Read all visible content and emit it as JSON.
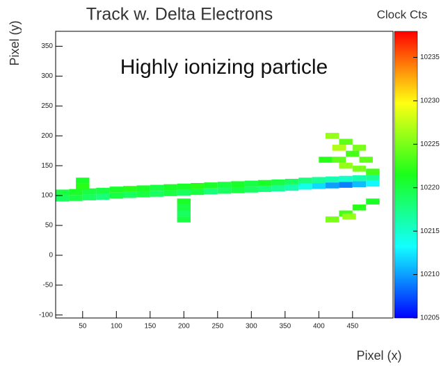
{
  "chart_data": {
    "type": "heatmap",
    "title": "Track w. Delta Electrons",
    "colorbar_title": "Clock Cts",
    "annotation": "Highly ionizing particle",
    "x_label": "Pixel (x)",
    "y_label": "Pixel (y)",
    "xlim": [
      10,
      510
    ],
    "xticks": [
      50,
      100,
      150,
      200,
      250,
      300,
      350,
      400,
      450
    ],
    "ylim": [
      -105,
      375
    ],
    "yticks": [
      -100,
      -50,
      0,
      50,
      100,
      150,
      200,
      250,
      300,
      350
    ],
    "zlim": [
      10205,
      10238
    ],
    "zticks": [
      10205,
      10210,
      10215,
      10220,
      10225,
      10230,
      10235
    ],
    "colormap": "rainbow",
    "x": [
      20,
      20,
      40,
      40,
      60,
      60,
      80,
      80,
      100,
      100,
      120,
      120,
      140,
      140,
      160,
      160,
      180,
      180,
      200,
      200,
      220,
      220,
      240,
      240,
      260,
      260,
      280,
      280,
      300,
      300,
      320,
      320,
      340,
      340,
      360,
      360,
      380,
      380,
      400,
      400,
      420,
      420,
      440,
      440,
      460,
      460,
      480,
      480,
      50,
      50,
      200,
      200,
      200,
      200,
      420,
      440,
      460,
      430,
      450,
      470,
      440,
      460,
      480,
      410,
      430,
      420,
      440,
      460,
      480,
      445
    ],
    "y": [
      95,
      105,
      96,
      106,
      97,
      107,
      98,
      108,
      100,
      110,
      101,
      111,
      102,
      112,
      103,
      113,
      104,
      114,
      105,
      115,
      106,
      116,
      107,
      117,
      108,
      118,
      109,
      119,
      110,
      120,
      111,
      121,
      112,
      122,
      113,
      123,
      115,
      125,
      116,
      126,
      117,
      127,
      118,
      128,
      119,
      129,
      120,
      130,
      115,
      125,
      90,
      80,
      70,
      60,
      200,
      190,
      180,
      180,
      170,
      160,
      150,
      145,
      140,
      160,
      160,
      60,
      70,
      80,
      90,
      65
    ],
    "values": [
      10219,
      10220,
      10220,
      10221,
      10219,
      10220,
      10218,
      10220,
      10220,
      10221,
      10219,
      10222,
      10220,
      10221,
      10219,
      10220,
      10220,
      10221,
      10219,
      10221,
      10220,
      10222,
      10218,
      10221,
      10219,
      10220,
      10220,
      10221,
      10219,
      10220,
      10218,
      10221,
      10217,
      10220,
      10216,
      10219,
      10214,
      10218,
      10212,
      10217,
      10210,
      10216,
      10209,
      10215,
      10211,
      10216,
      10213,
      10217,
      10222,
      10221,
      10221,
      10220,
      10219,
      10220,
      10226,
      10224,
      10225,
      10227,
      10223,
      10224,
      10226,
      10225,
      10223,
      10222,
      10224,
      10225,
      10223,
      10222,
      10221,
      10226
    ]
  }
}
